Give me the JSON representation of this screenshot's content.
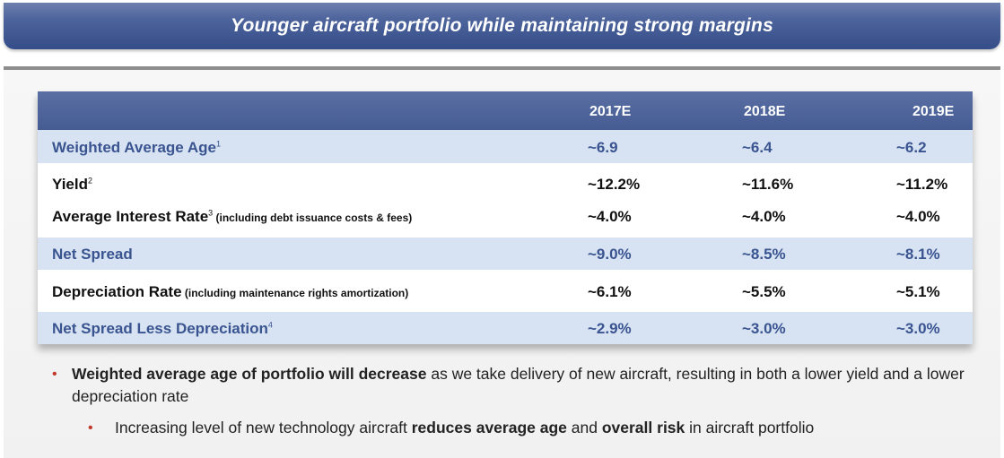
{
  "title": "Younger aircraft portfolio while maintaining strong margins",
  "table": {
    "headers": [
      "2017E",
      "2018E",
      "2019E"
    ],
    "rows": [
      {
        "label": "Weighted Average Age",
        "sup": "1",
        "note": "",
        "values": [
          "~6.9",
          "~6.4",
          "~6.2"
        ]
      },
      {
        "label": "Yield",
        "sup": "2",
        "note": "",
        "values": [
          "~12.2%",
          "~11.6%",
          "~11.2%"
        ]
      },
      {
        "label": "Average Interest Rate",
        "sup": "3",
        "note": " (including debt issuance costs & fees)",
        "values": [
          "~4.0%",
          "~4.0%",
          "~4.0%"
        ]
      },
      {
        "label": "Net Spread",
        "sup": "",
        "note": "",
        "values": [
          "~9.0%",
          "~8.5%",
          "~8.1%"
        ]
      },
      {
        "label": "Depreciation Rate",
        "sup": "",
        "note": " (including maintenance rights amortization)",
        "values": [
          "~6.1%",
          "~5.5%",
          "~5.1%"
        ]
      },
      {
        "label": "Net Spread Less Depreciation",
        "sup": "4",
        "note": "",
        "values": [
          "~2.9%",
          "~3.0%",
          "~3.0%"
        ]
      }
    ]
  },
  "bullets": {
    "main": {
      "bold": "Weighted average age of portfolio will decrease",
      "rest": " as we take delivery of new aircraft, resulting in both a lower yield and a lower depreciation rate"
    },
    "sub": {
      "part1": "Increasing level of new technology aircraft ",
      "bold1": "reduces average age",
      "part2": " and ",
      "bold2": "overall risk",
      "part3": " in aircraft portfolio"
    }
  },
  "colors": {
    "title_bar": "#4d649c",
    "table_header": "#4f6599",
    "shaded_row": "#d7e3f3",
    "shaded_text": "#3a5490",
    "bullet": "#c0392b"
  }
}
